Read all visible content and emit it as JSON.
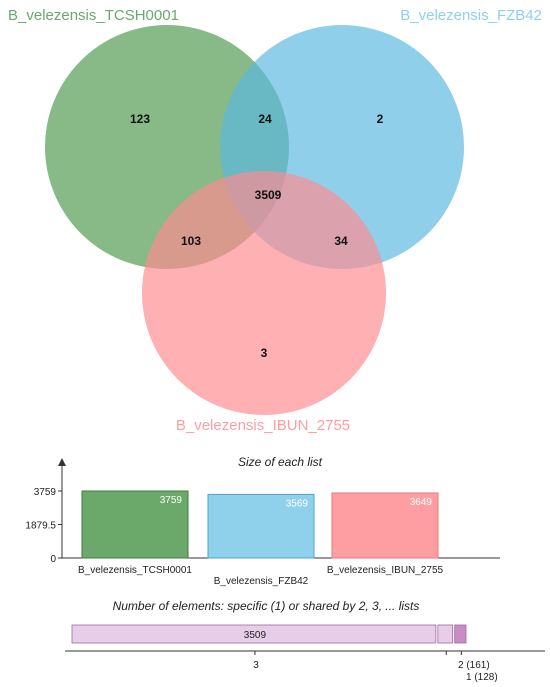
{
  "venn": {
    "sets": [
      {
        "name": "B_velezensis_TCSH0001",
        "color": "#4e9a4e"
      },
      {
        "name": "B_velezensis_FZB42",
        "color": "#5ab8e0"
      },
      {
        "name": "B_velezensis_IBUN_2755",
        "color": "#ff8a8f"
      }
    ],
    "regions": [
      {
        "sets": [
          "B_velezensis_TCSH0001"
        ],
        "count": 123
      },
      {
        "sets": [
          "B_velezensis_FZB42"
        ],
        "count": 2
      },
      {
        "sets": [
          "B_velezensis_IBUN_2755"
        ],
        "count": 3
      },
      {
        "sets": [
          "B_velezensis_TCSH0001",
          "B_velezensis_FZB42"
        ],
        "count": 24
      },
      {
        "sets": [
          "B_velezensis_TCSH0001",
          "B_velezensis_IBUN_2755"
        ],
        "count": 103
      },
      {
        "sets": [
          "B_velezensis_FZB42",
          "B_velezensis_IBUN_2755"
        ],
        "count": 34
      },
      {
        "sets": [
          "B_velezensis_TCSH0001",
          "B_velezensis_FZB42",
          "B_velezensis_IBUN_2755"
        ],
        "count": 3509
      }
    ]
  },
  "chart_data": [
    {
      "type": "bar",
      "title": "Size of each list",
      "categories": [
        "B_velezensis_TCSH0001",
        "B_velezensis_FZB42",
        "B_velezensis_IBUN_2755"
      ],
      "values": [
        3759,
        3569,
        3649
      ],
      "colors": [
        "#6aa96a",
        "#8fd0ea",
        "#ff9ea2"
      ],
      "yticks": [
        "0",
        "1879.5",
        "3759"
      ],
      "ylim": [
        0,
        3759
      ]
    },
    {
      "type": "bar",
      "title": "Number of elements: specific (1) or shared by 2, 3, ... lists",
      "categories": [
        "3",
        "2",
        "1"
      ],
      "values": [
        3509,
        161,
        128
      ],
      "bar_labels": [
        "3509",
        "",
        ""
      ],
      "axis_labels": [
        "3",
        "2 (161)",
        "1 (128)"
      ],
      "colors": [
        "#e6cde8",
        "#e6cde8",
        "#c98cc4"
      ]
    }
  ]
}
